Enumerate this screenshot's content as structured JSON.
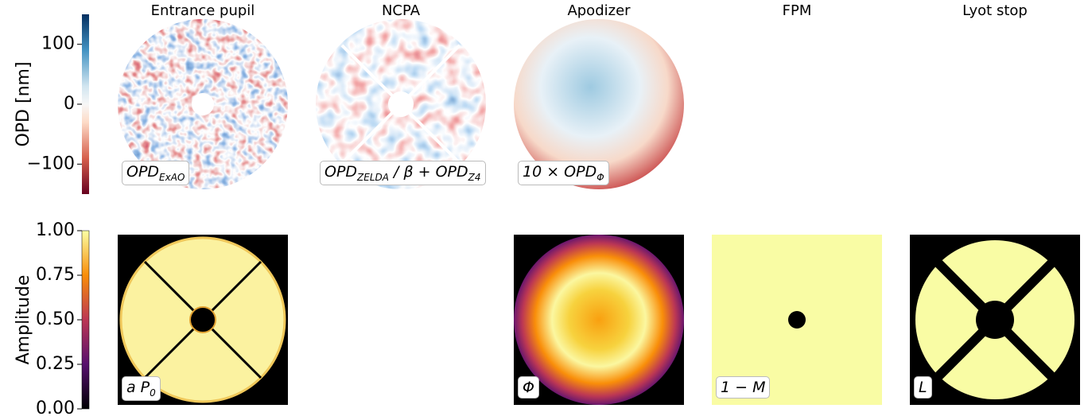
{
  "columns": [
    "Entrance pupil",
    "NCPA",
    "Apodizer",
    "FPM",
    "Lyot stop"
  ],
  "rows": [
    {
      "colorbar": {
        "label": "OPD [nm]",
        "ylim": [
          -150,
          150
        ],
        "yticks": [
          {
            "value": -100,
            "label": "−100"
          },
          0,
          100
        ]
      },
      "labels": [
        [
          {
            "text": "OPD"
          },
          {
            "text": "ExAO",
            "sub": true
          }
        ],
        [
          {
            "text": "OPD"
          },
          {
            "text": "ZELDA",
            "sub": true
          },
          {
            "text": " / β + OPD"
          },
          {
            "text": "Z4",
            "sub": true
          }
        ],
        [
          {
            "text": "10 × OPD"
          },
          {
            "text": "Φ",
            "sub": true
          }
        ],
        null,
        null
      ]
    },
    {
      "colorbar": {
        "label": "Amplitude",
        "ylim": [
          0,
          1
        ],
        "yticks": [
          {
            "value": 0,
            "label": "0.00"
          },
          {
            "value": 0.25,
            "label": "0.25"
          },
          {
            "value": 0.5,
            "label": "0.50"
          },
          {
            "value": 0.75,
            "label": "0.75"
          },
          {
            "value": 1,
            "label": "1.00"
          }
        ]
      },
      "labels": [
        [
          {
            "text": "a P"
          },
          {
            "text": "0",
            "sub": true
          }
        ],
        null,
        [
          {
            "text": "Φ"
          }
        ],
        [
          {
            "text": "1 − M"
          }
        ],
        [
          {
            "text": "L"
          }
        ]
      ]
    }
  ]
}
